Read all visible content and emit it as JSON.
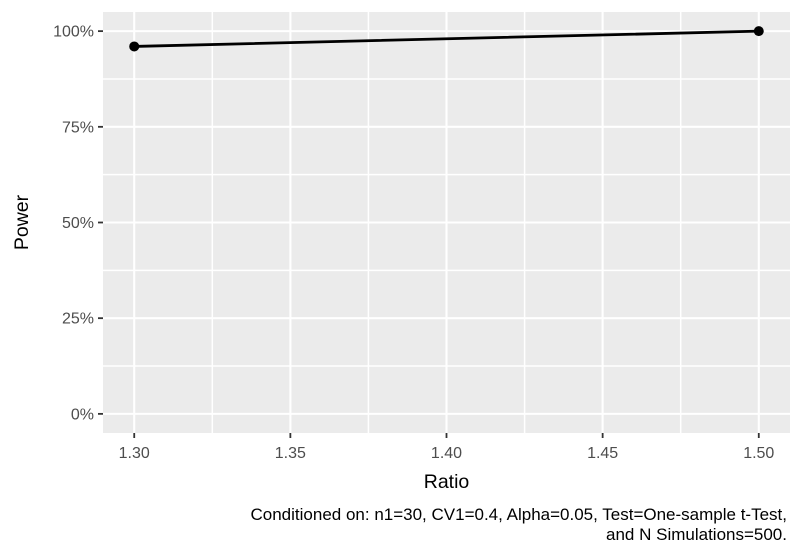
{
  "chart_data": {
    "type": "line",
    "title": "",
    "xlabel": "Ratio",
    "ylabel": "Power",
    "series": [
      {
        "name": "Power",
        "points": [
          {
            "x": 1.3,
            "y": 96
          },
          {
            "x": 1.5,
            "y": 100
          }
        ]
      }
    ],
    "x_ticks": {
      "values": [
        1.3,
        1.35,
        1.4,
        1.45,
        1.5
      ],
      "labels": [
        "1.30",
        "1.35",
        "1.40",
        "1.45",
        "1.50"
      ]
    },
    "y_ticks": {
      "values": [
        0,
        25,
        50,
        75,
        100
      ],
      "labels": [
        "0%",
        "25%",
        "50%",
        "75%",
        "100%"
      ]
    },
    "xlim": [
      1.29,
      1.51
    ],
    "ylim": [
      -5,
      105
    ],
    "grid": {
      "major": true,
      "minor": true
    },
    "legend": "none",
    "caption_lines": [
      "Conditioned on: n1=30, CV1=0.4, Alpha=0.05, Test=One-sample t-Test,",
      "and N Simulations=500."
    ],
    "colors": {
      "background": "#FFFFFF",
      "panel_bg": "#EBEBEB",
      "grid": "#FFFFFF",
      "line": "#000000",
      "point": "#000000",
      "tick_label": "#4D4D4D",
      "tick_mark": "#333333",
      "axis_title": "#000000",
      "caption": "#000000"
    }
  }
}
